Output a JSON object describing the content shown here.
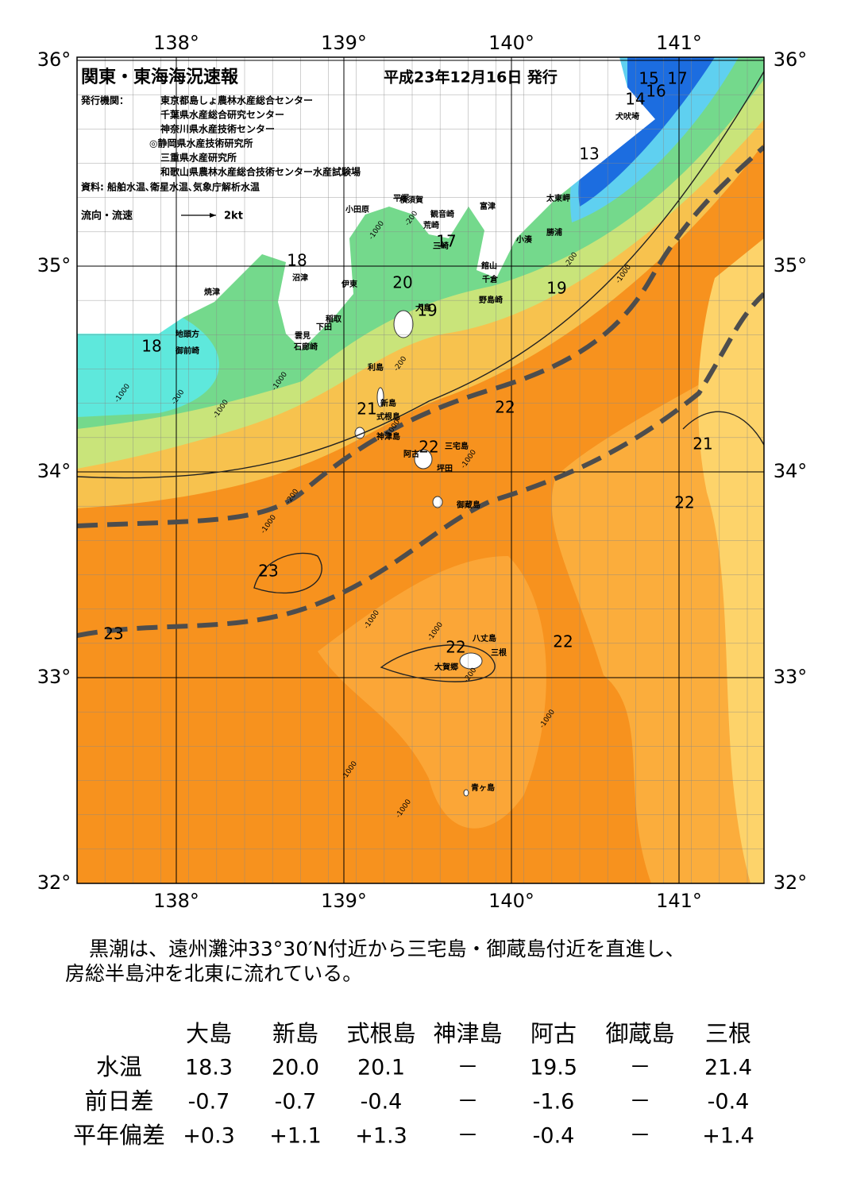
{
  "header": {
    "title": "関東・東海海況速報",
    "date": "平成23年12月16日 発行",
    "issuer_label": "発行機関：",
    "issuers": [
      "東京都島しょ農林水産総合センター",
      "千葉県水産総合研究センター",
      "神奈川県水産技術センター",
      "◎静岡県水産技術研究所",
      "三重県水産研究所",
      "和歌山県農林水産総合技術センター水産試験場"
    ],
    "source": "資料: 船舶水温､衛星水温､気象庁解析水温",
    "flow_legend": "流向・流速",
    "flow_scale": "2kt"
  },
  "axes": {
    "lon_ticks": [
      {
        "value": 138,
        "label": "138°"
      },
      {
        "value": 139,
        "label": "139°"
      },
      {
        "value": 140,
        "label": "140°"
      },
      {
        "value": 141,
        "label": "141°"
      }
    ],
    "lat_ticks": [
      {
        "value": 32,
        "label": "32°"
      },
      {
        "value": 33,
        "label": "33°"
      },
      {
        "value": 34,
        "label": "34°"
      },
      {
        "value": 35,
        "label": "35°"
      },
      {
        "value": 36,
        "label": "36°"
      }
    ]
  },
  "places": [
    "犬吠埼",
    "太東岬",
    "勝浦",
    "小湊",
    "富津",
    "横須賀",
    "観音崎",
    "荒崎",
    "三崎",
    "平塚",
    "小田原",
    "館山",
    "千倉",
    "野島崎",
    "沼津",
    "焼津",
    "伊東",
    "稲取",
    "下田",
    "雲見",
    "石廊崎",
    "地頭方",
    "御前崎",
    "大島",
    "利島",
    "新島",
    "式根島",
    "神津島",
    "阿古",
    "三宅島",
    "坪田",
    "御蔵島",
    "八丈島",
    "三根",
    "大賀郷",
    "青ヶ島"
  ],
  "temperature_labels": [
    "13",
    "14",
    "15",
    "16",
    "17",
    "17",
    "18",
    "18",
    "19",
    "19",
    "20",
    "21",
    "22",
    "22",
    "21",
    "22",
    "23",
    "23",
    "22",
    "22"
  ],
  "depth_labels": [
    "-200",
    "-1000",
    "-200",
    "-1000",
    "-200",
    "-1000",
    "-200",
    "-1000",
    "-1000",
    "-1000",
    "-200",
    "-1000",
    "-1000",
    "-1000",
    "-200",
    "-1000",
    "-1000",
    "-1000",
    "-1000"
  ],
  "summary": [
    "黒潮は、遠州灘沖33°30′N付近から三宅島・御蔵島付近を直進し、",
    "房総半島沖を北東に流れている。"
  ],
  "table": {
    "columns": [
      "大島",
      "新島",
      "式根島",
      "神津島",
      "阿古",
      "御蔵島",
      "三根"
    ],
    "rows": [
      {
        "label": "水温",
        "values": [
          "18.3",
          "20.0",
          "20.1",
          "－",
          "19.5",
          "－",
          "21.4"
        ]
      },
      {
        "label": "前日差",
        "values": [
          "-0.7",
          "-0.7",
          "-0.4",
          "－",
          "-1.6",
          "－",
          "-0.4"
        ]
      },
      {
        "label": "平年偏差",
        "values": [
          "+0.3",
          "+1.1",
          "+1.3",
          "－",
          "-0.4",
          "－",
          "+1.4"
        ]
      }
    ]
  }
}
